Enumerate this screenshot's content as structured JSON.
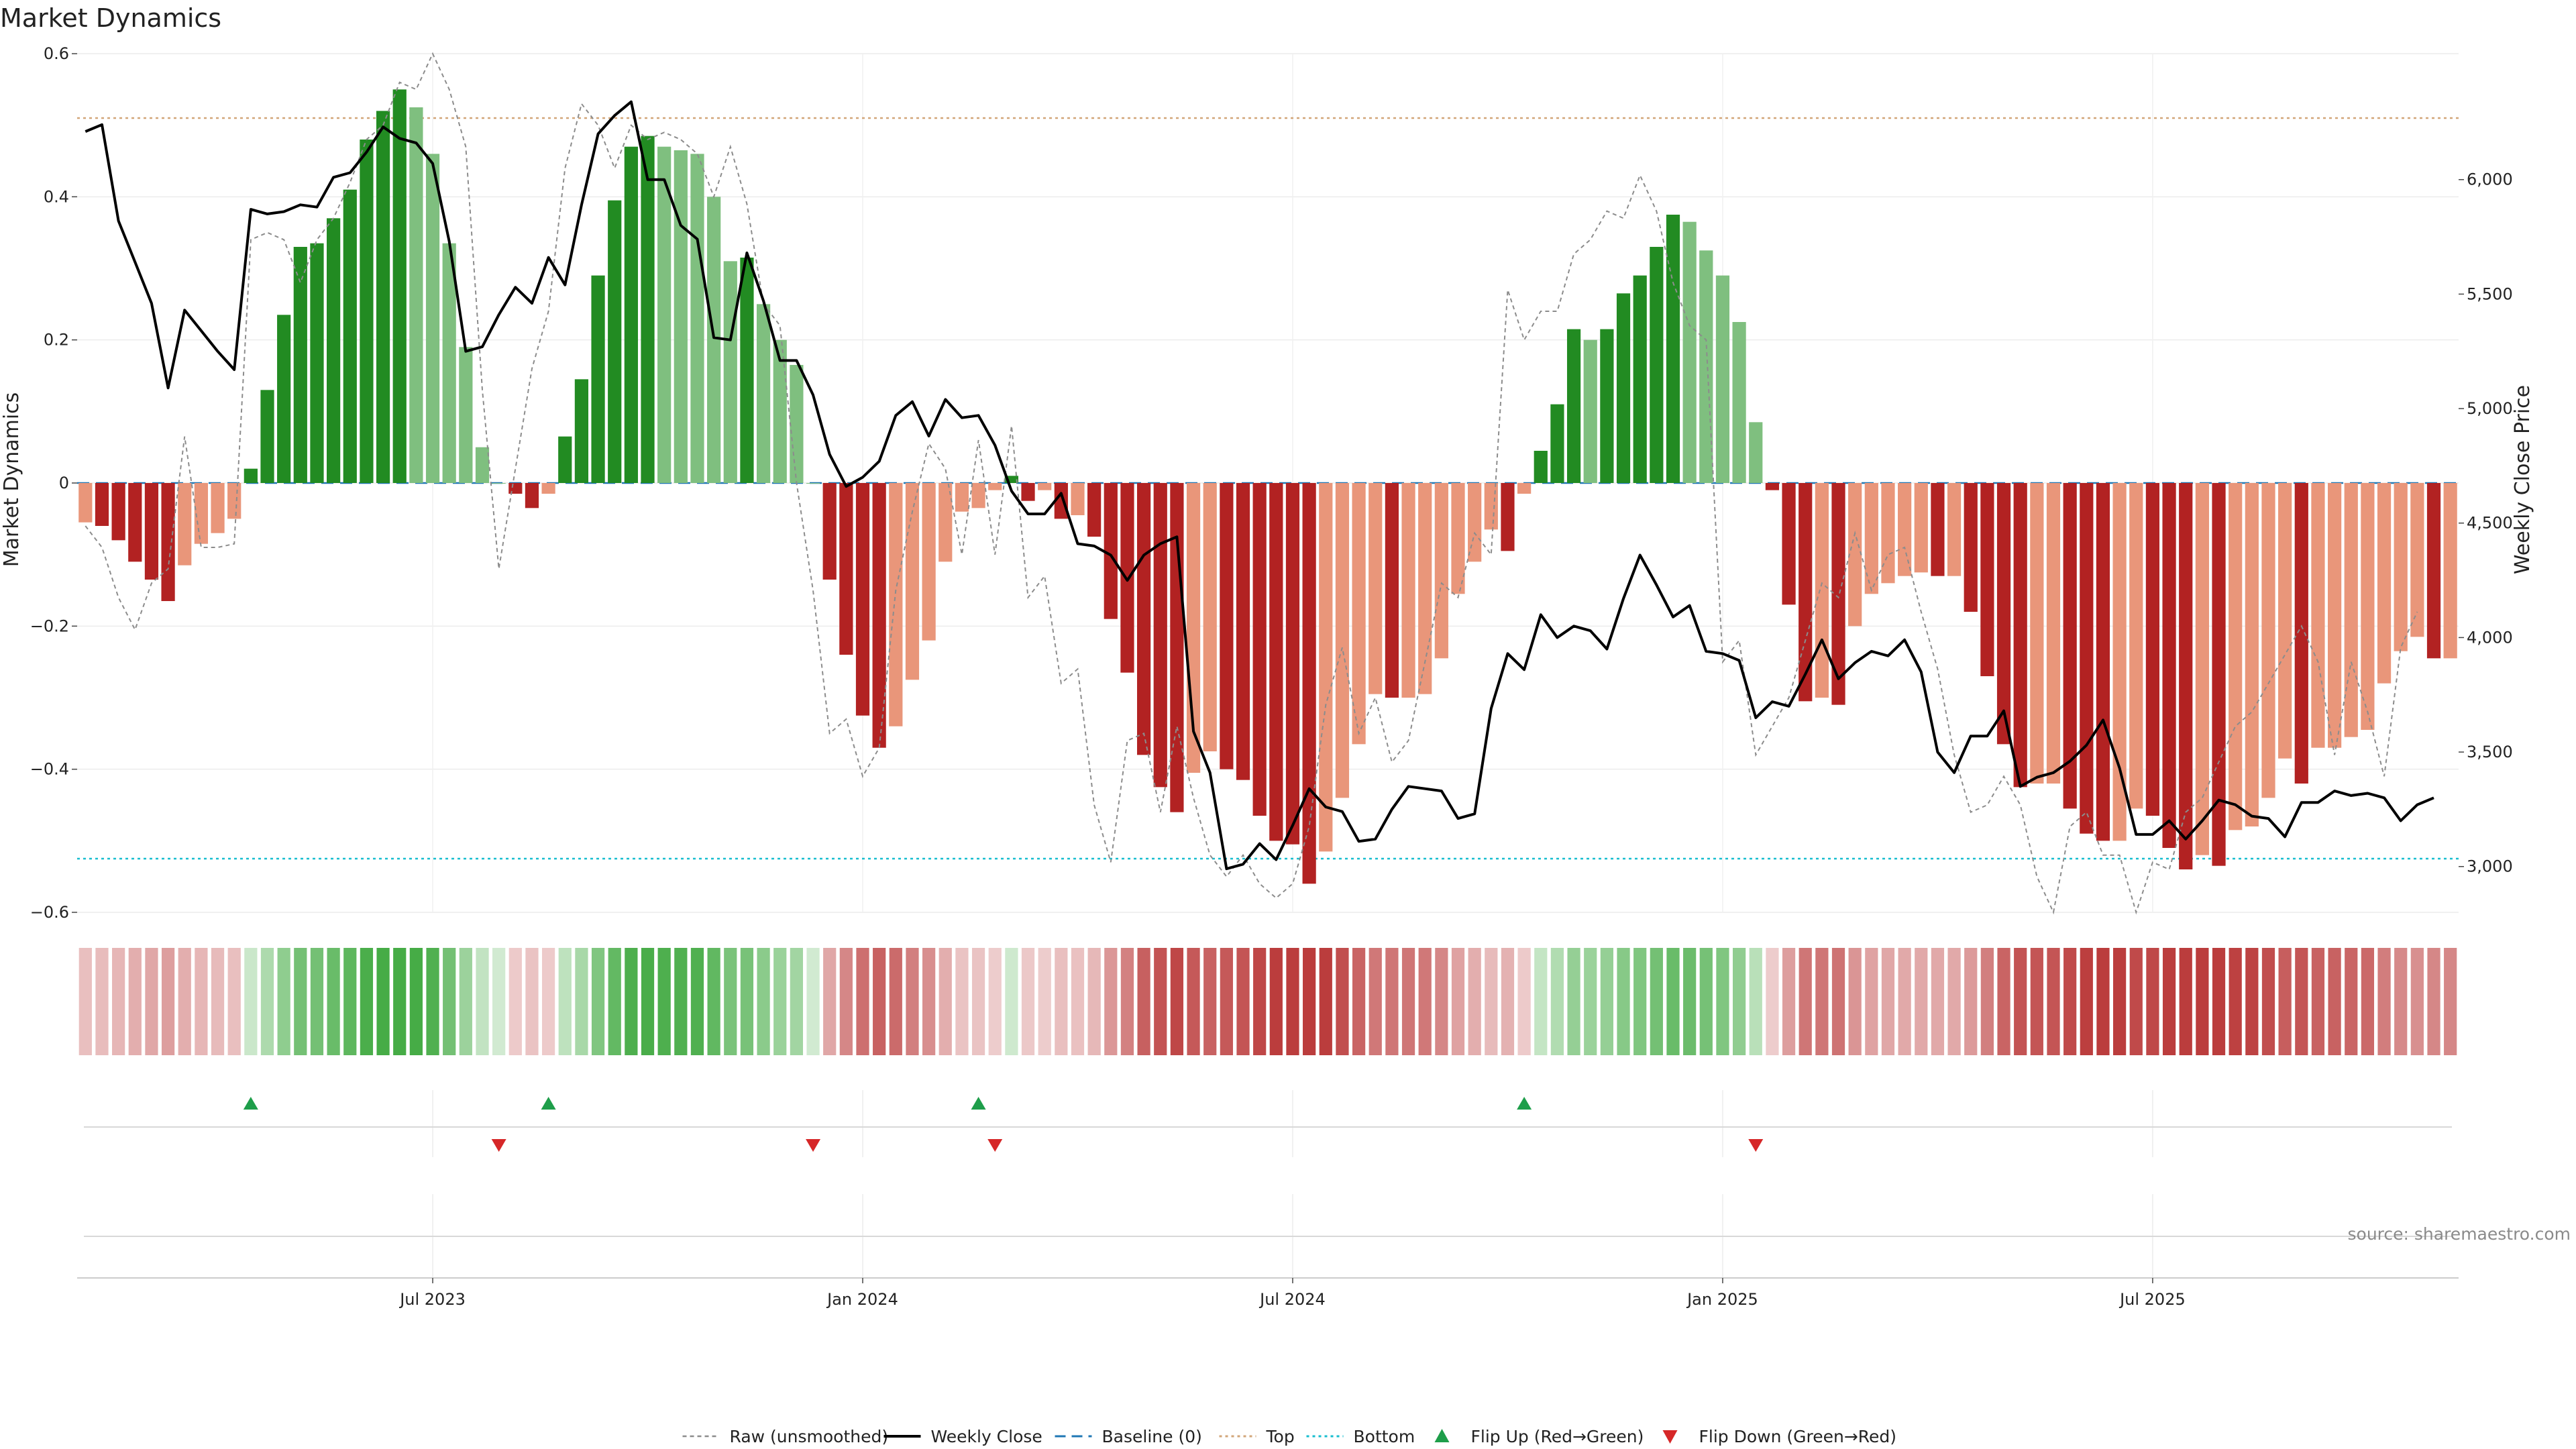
{
  "chart_data": {
    "type": "bar",
    "title": "Market Dynamics",
    "ylabel": "Market Dynamics",
    "y2label": "Weekly Close Price",
    "ylim": [
      -0.6,
      0.6
    ],
    "y2lim": [
      2800,
      6550
    ],
    "yticks": [
      {
        "v": 0.6,
        "label": "0.6"
      },
      {
        "v": 0.4,
        "label": "0.4"
      },
      {
        "v": 0.2,
        "label": "0.2"
      },
      {
        "v": 0,
        "label": "0"
      },
      {
        "v": -0.2,
        "label": "−0.2"
      },
      {
        "v": -0.4,
        "label": "−0.4"
      },
      {
        "v": -0.6,
        "label": "−0.6"
      }
    ],
    "y2ticks": [
      {
        "v": 3000,
        "label": "3,000"
      },
      {
        "v": 3500,
        "label": "3,500"
      },
      {
        "v": 4000,
        "label": "4,000"
      },
      {
        "v": 4500,
        "label": "4,500"
      },
      {
        "v": 5000,
        "label": "5,000"
      },
      {
        "v": 5500,
        "label": "5,500"
      },
      {
        "v": 6000,
        "label": "6,000"
      }
    ],
    "xticks": [
      {
        "i": 21,
        "label": "Jul 2023"
      },
      {
        "i": 47,
        "label": "Jan 2024"
      },
      {
        "i": 73,
        "label": "Jul 2024"
      },
      {
        "i": 99,
        "label": "Jan 2025"
      },
      {
        "i": 125,
        "label": "Jul 2025"
      }
    ],
    "top": 0.51,
    "bottom": -0.525,
    "baseline": 0,
    "smoothed": [
      -0.055,
      -0.06,
      -0.08,
      -0.11,
      -0.135,
      -0.165,
      -0.115,
      -0.085,
      -0.07,
      -0.05,
      0.02,
      0.13,
      0.235,
      0.33,
      0.335,
      0.37,
      0.41,
      0.48,
      0.52,
      0.55,
      0.525,
      0.46,
      0.335,
      0.19,
      0.05,
      0.0,
      -0.015,
      -0.035,
      -0.015,
      0.065,
      0.145,
      0.29,
      0.395,
      0.47,
      0.485,
      0.47,
      0.465,
      0.46,
      0.4,
      0.31,
      0.315,
      0.25,
      0.2,
      0.165,
      0.0,
      -0.135,
      -0.24,
      -0.325,
      -0.37,
      -0.34,
      -0.275,
      -0.22,
      -0.11,
      -0.04,
      -0.035,
      -0.01,
      0.01,
      -0.025,
      -0.01,
      -0.05,
      -0.045,
      -0.075,
      -0.19,
      -0.265,
      -0.38,
      -0.425,
      -0.46,
      -0.405,
      -0.375,
      -0.4,
      -0.415,
      -0.465,
      -0.5,
      -0.505,
      -0.56,
      -0.515,
      -0.44,
      -0.365,
      -0.295,
      -0.3,
      -0.3,
      -0.295,
      -0.245,
      -0.155,
      -0.11,
      -0.065,
      -0.095,
      -0.015,
      0.045,
      0.11,
      0.215,
      0.2,
      0.215,
      0.265,
      0.29,
      0.33,
      0.375,
      0.365,
      0.325,
      0.29,
      0.225,
      0.085,
      -0.01,
      -0.17,
      -0.305,
      -0.3,
      -0.31,
      -0.2,
      -0.155,
      -0.14,
      -0.13,
      -0.125,
      -0.13,
      -0.13,
      -0.18,
      -0.27,
      -0.365,
      -0.425,
      -0.42,
      -0.42,
      -0.455,
      -0.49,
      -0.5,
      -0.5,
      -0.455,
      -0.465,
      -0.51,
      -0.54,
      -0.52,
      -0.535,
      -0.485,
      -0.48,
      -0.44,
      -0.385,
      -0.42,
      -0.37,
      -0.37,
      -0.355,
      -0.345,
      -0.28,
      -0.235,
      -0.215,
      -0.245,
      -0.245
    ],
    "raw": [
      -0.06,
      -0.09,
      -0.16,
      -0.205,
      -0.14,
      -0.12,
      0.065,
      -0.09,
      -0.09,
      -0.085,
      0.34,
      0.35,
      0.34,
      0.28,
      0.34,
      0.37,
      0.42,
      0.48,
      0.5,
      0.56,
      0.55,
      0.6,
      0.55,
      0.47,
      0.13,
      -0.12,
      0.02,
      0.16,
      0.24,
      0.44,
      0.53,
      0.5,
      0.44,
      0.5,
      0.48,
      0.49,
      0.48,
      0.46,
      0.4,
      0.47,
      0.39,
      0.25,
      0.22,
      0.0,
      -0.15,
      -0.35,
      -0.33,
      -0.41,
      -0.37,
      -0.15,
      -0.04,
      0.055,
      0.02,
      -0.1,
      0.06,
      -0.1,
      0.08,
      -0.16,
      -0.13,
      -0.28,
      -0.26,
      -0.45,
      -0.53,
      -0.36,
      -0.35,
      -0.46,
      -0.34,
      -0.44,
      -0.52,
      -0.55,
      -0.52,
      -0.56,
      -0.58,
      -0.56,
      -0.48,
      -0.31,
      -0.23,
      -0.35,
      -0.3,
      -0.39,
      -0.36,
      -0.25,
      -0.14,
      -0.16,
      -0.07,
      -0.1,
      0.27,
      0.2,
      0.24,
      0.24,
      0.32,
      0.34,
      0.38,
      0.37,
      0.43,
      0.38,
      0.28,
      0.22,
      0.2,
      -0.25,
      -0.22,
      -0.38,
      -0.34,
      -0.3,
      -0.22,
      -0.14,
      -0.16,
      -0.07,
      -0.15,
      -0.1,
      -0.09,
      -0.18,
      -0.26,
      -0.38,
      -0.46,
      -0.45,
      -0.41,
      -0.45,
      -0.55,
      -0.6,
      -0.48,
      -0.46,
      -0.52,
      -0.52,
      -0.6,
      -0.53,
      -0.54,
      -0.46,
      -0.44,
      -0.39,
      -0.34,
      -0.32,
      -0.28,
      -0.24,
      -0.2,
      -0.25,
      -0.38,
      -0.25,
      -0.32,
      -0.41,
      -0.23,
      -0.18
    ],
    "close_points": [
      [
        0,
        6210
      ],
      [
        1,
        6240
      ],
      [
        2,
        5820
      ],
      [
        3,
        5640
      ],
      [
        4,
        5460
      ],
      [
        5,
        5090
      ],
      [
        6,
        5430
      ],
      [
        7,
        5340
      ],
      [
        8,
        5250
      ],
      [
        9,
        5170
      ],
      [
        10,
        5870
      ],
      [
        11,
        5850
      ],
      [
        12,
        5860
      ],
      [
        13,
        5890
      ],
      [
        14,
        5880
      ],
      [
        15,
        6010
      ],
      [
        16,
        6030
      ],
      [
        17,
        6120
      ],
      [
        18,
        6230
      ],
      [
        19,
        6180
      ],
      [
        20,
        6160
      ],
      [
        21,
        6070
      ],
      [
        22,
        5730
      ],
      [
        23,
        5250
      ],
      [
        24,
        5270
      ],
      [
        25,
        5410
      ],
      [
        26,
        5530
      ],
      [
        27,
        5460
      ],
      [
        28,
        5660
      ],
      [
        29,
        5540
      ],
      [
        30,
        5890
      ],
      [
        31,
        6200
      ],
      [
        32,
        6280
      ],
      [
        33,
        6340
      ],
      [
        34,
        6000
      ],
      [
        35,
        6000
      ],
      [
        36,
        5800
      ],
      [
        37,
        5740
      ],
      [
        38,
        5310
      ],
      [
        39,
        5300
      ],
      [
        40,
        5680
      ],
      [
        41,
        5470
      ],
      [
        42,
        5210
      ],
      [
        43,
        5210
      ],
      [
        44,
        5060
      ],
      [
        45,
        4800
      ],
      [
        46,
        4660
      ],
      [
        47,
        4700
      ],
      [
        48,
        4770
      ],
      [
        49,
        4970
      ],
      [
        50,
        5030
      ],
      [
        51,
        4880
      ],
      [
        52,
        5040
      ],
      [
        53,
        4960
      ],
      [
        54,
        4970
      ],
      [
        55,
        4840
      ],
      [
        56,
        4640
      ],
      [
        57,
        4540
      ],
      [
        58,
        4540
      ],
      [
        59,
        4630
      ],
      [
        60,
        4410
      ],
      [
        61,
        4400
      ],
      [
        62,
        4360
      ],
      [
        63,
        4250
      ],
      [
        64,
        4360
      ],
      [
        65,
        4410
      ],
      [
        66,
        4440
      ],
      [
        67,
        3590
      ],
      [
        68,
        3410
      ],
      [
        69,
        2990
      ],
      [
        70,
        3010
      ],
      [
        71,
        3100
      ],
      [
        72,
        3030
      ],
      [
        73,
        3180
      ],
      [
        74,
        3340
      ],
      [
        75,
        3260
      ],
      [
        76,
        3240
      ],
      [
        77,
        3110
      ],
      [
        78,
        3120
      ],
      [
        79,
        3250
      ],
      [
        80,
        3350
      ],
      [
        81,
        3340
      ],
      [
        82,
        3330
      ],
      [
        83,
        3210
      ],
      [
        84,
        3230
      ],
      [
        85,
        3690
      ],
      [
        86,
        3930
      ],
      [
        87,
        3860
      ],
      [
        88,
        4100
      ],
      [
        89,
        4000
      ],
      [
        90,
        4050
      ],
      [
        91,
        4030
      ],
      [
        92,
        3950
      ],
      [
        93,
        4170
      ],
      [
        94,
        4360
      ],
      [
        95,
        4230
      ],
      [
        96,
        4090
      ],
      [
        97,
        4140
      ],
      [
        98,
        3940
      ],
      [
        99,
        3930
      ],
      [
        100,
        3900
      ],
      [
        101,
        3650
      ],
      [
        102,
        3720
      ],
      [
        103,
        3700
      ],
      [
        104,
        3840
      ],
      [
        105,
        3990
      ],
      [
        106,
        3820
      ],
      [
        107,
        3890
      ],
      [
        108,
        3940
      ],
      [
        109,
        3920
      ],
      [
        110,
        3990
      ],
      [
        111,
        3850
      ],
      [
        112,
        3500
      ],
      [
        113,
        3410
      ],
      [
        114,
        3570
      ],
      [
        115,
        3570
      ],
      [
        116,
        3680
      ],
      [
        117,
        3350
      ],
      [
        118,
        3390
      ],
      [
        119,
        3410
      ],
      [
        120,
        3460
      ],
      [
        121,
        3530
      ],
      [
        122,
        3640
      ],
      [
        123,
        3430
      ],
      [
        124,
        3140
      ],
      [
        125,
        3140
      ],
      [
        126,
        3200
      ],
      [
        127,
        3120
      ],
      [
        128,
        3200
      ],
      [
        129,
        3290
      ],
      [
        130,
        3270
      ],
      [
        131,
        3220
      ],
      [
        132,
        3210
      ],
      [
        133,
        3130
      ],
      [
        134,
        3280
      ],
      [
        135,
        3280
      ],
      [
        136,
        3330
      ],
      [
        137,
        3310
      ],
      [
        138,
        3320
      ],
      [
        139,
        3300
      ],
      [
        140,
        3200
      ],
      [
        141,
        3270
      ],
      [
        142,
        3300
      ]
    ],
    "flip_up": [
      10,
      28,
      54,
      87
    ],
    "flip_down": [
      25,
      44,
      55,
      101
    ],
    "source": "source: sharemaestro.com",
    "legend": [
      {
        "key": "raw",
        "label": "Raw (unsmoothed)"
      },
      {
        "key": "close",
        "label": "Weekly Close"
      },
      {
        "key": "baseline",
        "label": "Baseline (0)"
      },
      {
        "key": "top",
        "label": "Top"
      },
      {
        "key": "bottom",
        "label": "Bottom"
      },
      {
        "key": "flipup",
        "label": "Flip Up (Red→Green)"
      },
      {
        "key": "flipdown",
        "label": "Flip Down (Green→Red)"
      }
    ],
    "legend_position": "bottom-center",
    "grid": true,
    "colors": {
      "green_dark": "#228b22",
      "green_light": "#7fbf7f",
      "red_dark": "#b22222",
      "red_light": "#e9967a",
      "raw": "#8c8c8c",
      "close": "#000000",
      "baseline": "#1f77b4",
      "top": "#d2a679",
      "bottom": "#17becf",
      "flip_up": "#1e9e4a",
      "flip_down": "#d62728"
    }
  }
}
